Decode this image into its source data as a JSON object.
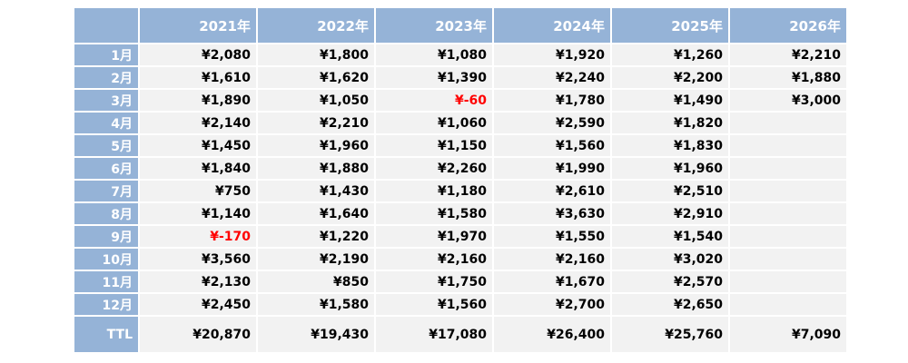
{
  "table": {
    "columns": [
      "2021年",
      "2022年",
      "2023年",
      "2024年",
      "2025年",
      "2026年"
    ],
    "rows": [
      {
        "label": "1月",
        "values": [
          "¥2,080",
          "¥1,800",
          "¥1,080",
          "¥1,920",
          "¥1,260",
          "¥2,210"
        ]
      },
      {
        "label": "2月",
        "values": [
          "¥1,610",
          "¥1,620",
          "¥1,390",
          "¥2,240",
          "¥2,200",
          "¥1,880"
        ]
      },
      {
        "label": "3月",
        "values": [
          "¥1,890",
          "¥1,050",
          "¥-60",
          "¥1,780",
          "¥1,490",
          "¥3,000"
        ]
      },
      {
        "label": "4月",
        "values": [
          "¥2,140",
          "¥2,210",
          "¥1,060",
          "¥2,590",
          "¥1,820",
          ""
        ]
      },
      {
        "label": "5月",
        "values": [
          "¥1,450",
          "¥1,960",
          "¥1,150",
          "¥1,560",
          "¥1,830",
          ""
        ]
      },
      {
        "label": "6月",
        "values": [
          "¥1,840",
          "¥1,880",
          "¥2,260",
          "¥1,990",
          "¥1,960",
          ""
        ]
      },
      {
        "label": "7月",
        "values": [
          "¥750",
          "¥1,430",
          "¥1,180",
          "¥2,610",
          "¥2,510",
          ""
        ]
      },
      {
        "label": "8月",
        "values": [
          "¥1,140",
          "¥1,640",
          "¥1,580",
          "¥3,630",
          "¥2,910",
          ""
        ]
      },
      {
        "label": "9月",
        "values": [
          "¥-170",
          "¥1,220",
          "¥1,970",
          "¥1,550",
          "¥1,540",
          ""
        ]
      },
      {
        "label": "10月",
        "values": [
          "¥3,560",
          "¥2,190",
          "¥2,160",
          "¥2,160",
          "¥3,020",
          ""
        ]
      },
      {
        "label": "11月",
        "values": [
          "¥2,130",
          "¥850",
          "¥1,750",
          "¥1,670",
          "¥2,570",
          ""
        ]
      },
      {
        "label": "12月",
        "values": [
          "¥2,450",
          "¥1,580",
          "¥1,560",
          "¥2,700",
          "¥2,650",
          ""
        ]
      }
    ],
    "total": {
      "label": "TTL",
      "values": [
        "¥20,870",
        "¥19,430",
        "¥17,080",
        "¥26,400",
        "¥25,760",
        "¥7,090"
      ]
    }
  },
  "colors": {
    "header_bg": "#95b3d7",
    "cell_bg": "#f2f2f2",
    "negative": "#ff0000"
  }
}
